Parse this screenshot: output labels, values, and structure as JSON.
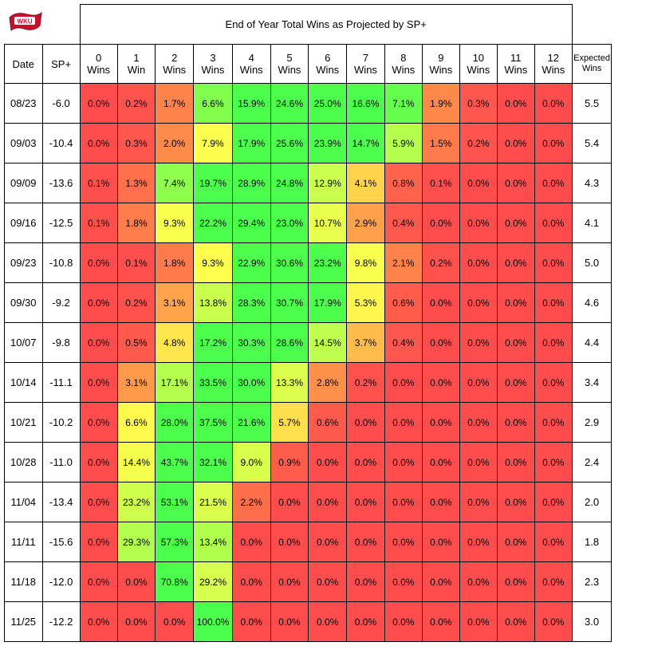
{
  "logo": {
    "text": "WKU",
    "color": "#c8102e"
  },
  "chart_data": {
    "type": "heatmap",
    "title": "End of Year Total Wins as Projected by SP+",
    "header_date": "Date",
    "header_sp": "SP+",
    "header_expected": [
      "Expected",
      "Wins"
    ],
    "columns": [
      [
        "0",
        "Wins"
      ],
      [
        "1",
        "Win"
      ],
      [
        "2",
        "Wins"
      ],
      [
        "3",
        "Wins"
      ],
      [
        "4",
        "Wins"
      ],
      [
        "5",
        "Wins"
      ],
      [
        "6",
        "Wins"
      ],
      [
        "7",
        "Wins"
      ],
      [
        "8",
        "Wins"
      ],
      [
        "9",
        "Wins"
      ],
      [
        "10",
        "Wins"
      ],
      [
        "11",
        "Wins"
      ],
      [
        "12",
        "Wins"
      ]
    ],
    "rows": [
      {
        "date": "08/23",
        "sp": "-6.0",
        "expected": "5.5",
        "values": [
          0.0,
          0.2,
          1.7,
          6.6,
          15.9,
          24.6,
          25.0,
          16.6,
          7.1,
          1.9,
          0.3,
          0.0,
          0.0
        ]
      },
      {
        "date": "09/03",
        "sp": "-10.4",
        "expected": "5.4",
        "values": [
          0.0,
          0.3,
          2.0,
          7.9,
          17.9,
          25.6,
          23.9,
          14.7,
          5.9,
          1.5,
          0.2,
          0.0,
          0.0
        ]
      },
      {
        "date": "09/09",
        "sp": "-13.6",
        "expected": "4.3",
        "values": [
          0.1,
          1.3,
          7.4,
          19.7,
          28.9,
          24.8,
          12.9,
          4.1,
          0.8,
          0.1,
          0.0,
          0.0,
          0.0
        ]
      },
      {
        "date": "09/16",
        "sp": "-12.5",
        "expected": "4.1",
        "values": [
          0.1,
          1.8,
          9.3,
          22.2,
          29.4,
          23.0,
          10.7,
          2.9,
          0.4,
          0.0,
          0.0,
          0.0,
          0.0
        ]
      },
      {
        "date": "09/23",
        "sp": "-10.8",
        "expected": "5.0",
        "values": [
          0.0,
          0.1,
          1.8,
          9.3,
          22.9,
          30.6,
          23.2,
          9.8,
          2.1,
          0.2,
          0.0,
          0.0,
          0.0
        ]
      },
      {
        "date": "09/30",
        "sp": "-9.2",
        "expected": "4.6",
        "values": [
          0.0,
          0.2,
          3.1,
          13.8,
          28.3,
          30.7,
          17.9,
          5.3,
          0.6,
          0.0,
          0.0,
          0.0,
          0.0
        ]
      },
      {
        "date": "10/07",
        "sp": "-9.8",
        "expected": "4.4",
        "values": [
          0.0,
          0.5,
          4.8,
          17.2,
          30.3,
          28.6,
          14.5,
          3.7,
          0.4,
          0.0,
          0.0,
          0.0,
          0.0
        ]
      },
      {
        "date": "10/14",
        "sp": "-11.1",
        "expected": "3.4",
        "values": [
          0.0,
          3.1,
          17.1,
          33.5,
          30.0,
          13.3,
          2.8,
          0.2,
          0.0,
          0.0,
          0.0,
          0.0,
          0.0
        ]
      },
      {
        "date": "10/21",
        "sp": "-10.2",
        "expected": "2.9",
        "values": [
          0.0,
          6.6,
          28.0,
          37.5,
          21.6,
          5.7,
          0.6,
          0.0,
          0.0,
          0.0,
          0.0,
          0.0,
          0.0
        ]
      },
      {
        "date": "10/28",
        "sp": "-11.0",
        "expected": "2.4",
        "values": [
          0.0,
          14.4,
          43.7,
          32.1,
          9.0,
          0.9,
          0.0,
          0.0,
          0.0,
          0.0,
          0.0,
          0.0,
          0.0
        ]
      },
      {
        "date": "11/04",
        "sp": "-13.4",
        "expected": "2.0",
        "values": [
          0.0,
          23.2,
          53.1,
          21.5,
          2.2,
          0.0,
          0.0,
          0.0,
          0.0,
          0.0,
          0.0,
          0.0,
          0.0
        ]
      },
      {
        "date": "11/11",
        "sp": "-15.6",
        "expected": "1.8",
        "values": [
          0.0,
          29.3,
          57.3,
          13.4,
          0.0,
          0.0,
          0.0,
          0.0,
          0.0,
          0.0,
          0.0,
          0.0,
          0.0
        ]
      },
      {
        "date": "11/18",
        "sp": "-12.0",
        "expected": "2.3",
        "values": [
          0.0,
          0.0,
          70.8,
          29.2,
          0.0,
          0.0,
          0.0,
          0.0,
          0.0,
          0.0,
          0.0,
          0.0,
          0.0
        ]
      },
      {
        "date": "11/25",
        "sp": "-12.2",
        "expected": "3.0",
        "values": [
          0.0,
          0.0,
          0.0,
          100.0,
          0.0,
          0.0,
          0.0,
          0.0,
          0.0,
          0.0,
          0.0,
          0.0,
          0.0
        ]
      }
    ],
    "color_scale": {
      "low": "#ff4d4d",
      "mid_low": "#ff8c4a",
      "mid": "#ffff4d",
      "high": "#4dff4d"
    }
  }
}
